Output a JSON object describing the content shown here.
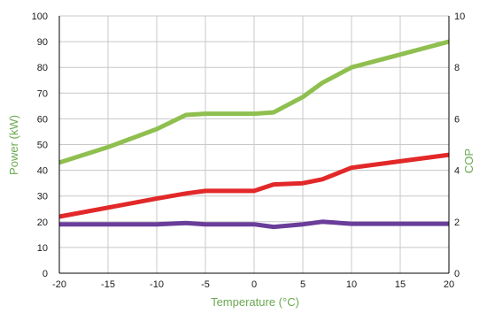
{
  "chart_data": {
    "type": "line",
    "title": "",
    "xlabel": "Temperature (°C)",
    "ylabel": "Power (kW)",
    "y2label": "COP",
    "xlim": [
      -20,
      20
    ],
    "ylim": [
      0,
      100
    ],
    "y2lim": [
      0,
      10
    ],
    "xticks": [
      -20,
      -15,
      -10,
      -5,
      0,
      5,
      10,
      15,
      20
    ],
    "yticks": [
      0,
      10,
      20,
      30,
      40,
      50,
      60,
      70,
      80,
      90,
      100
    ],
    "y2ticks": [
      0,
      2,
      4,
      6,
      8,
      10
    ],
    "grid": true,
    "series": [
      {
        "axis": "left",
        "color": "#8fbf4f",
        "x": [
          -20,
          -15,
          -10,
          -7,
          -5,
          0,
          2,
          5,
          7,
          10,
          15,
          20
        ],
        "values": [
          43,
          49,
          56,
          61.5,
          62,
          62,
          62.5,
          68.5,
          74,
          80,
          85,
          90
        ]
      },
      {
        "axis": "left",
        "color": "#e22828",
        "x": [
          -20,
          -15,
          -10,
          -7,
          -5,
          0,
          2,
          5,
          7,
          10,
          15,
          20
        ],
        "values": [
          22,
          25.5,
          29,
          31,
          32,
          32,
          34.5,
          35,
          36.5,
          41,
          43.5,
          46
        ]
      },
      {
        "axis": "left",
        "color": "#6a3d9a",
        "x": [
          -20,
          -15,
          -10,
          -7,
          -5,
          0,
          2,
          5,
          7,
          10,
          15,
          20
        ],
        "values": [
          19,
          19,
          19,
          19.5,
          19,
          19,
          18,
          19,
          20,
          19.2,
          19.2,
          19.2
        ]
      }
    ]
  },
  "colors": {
    "left_axis_title": "#6aa84f",
    "right_axis_title": "#6aa84f",
    "x_axis_title": "#6aa84f",
    "grid": "#c8c8c8",
    "axis_line": "#000000"
  }
}
